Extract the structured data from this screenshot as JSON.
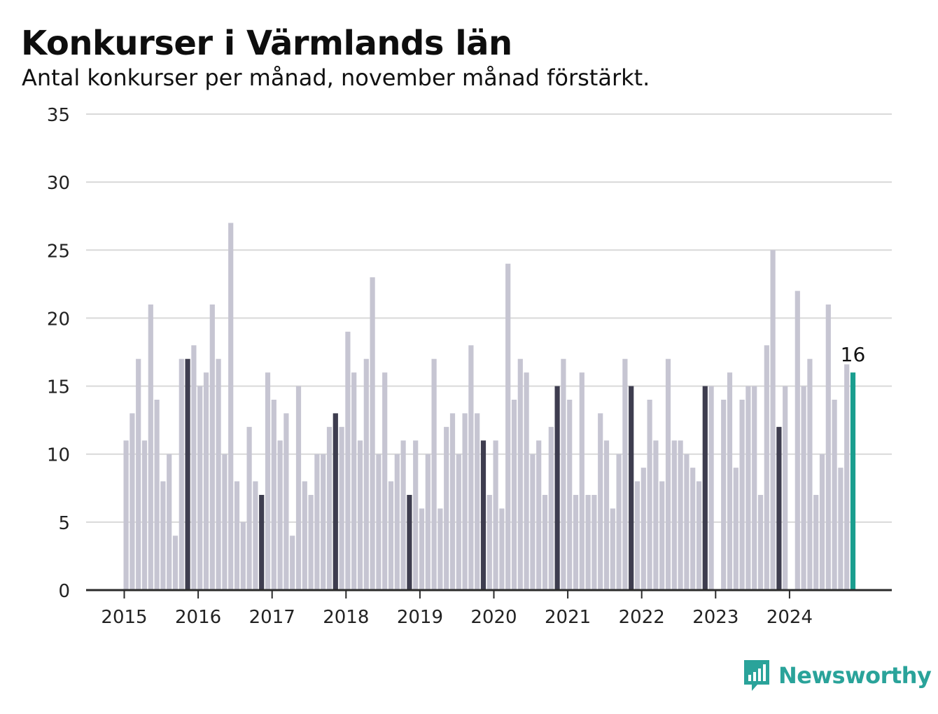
{
  "title": "Konkurser i Värmlands län",
  "subtitle": "Antal konkurser per månad, november månad förstärkt.",
  "brand": {
    "name": "Newsworthy",
    "icon": "newsworthy-logo-icon"
  },
  "colors": {
    "normal": "#c6c5d2",
    "november": "#3e3d4f",
    "latest": "#1a9e8f",
    "grid": "#d9d9d9",
    "axis": "#2a2a2a",
    "brand": "#2aa39a"
  },
  "chart_data": {
    "type": "bar",
    "title": "Konkurser i Värmlands län",
    "subtitle": "Antal konkurser per månad, november månad förstärkt.",
    "xlabel": "",
    "ylabel": "",
    "ylim": [
      0,
      35
    ],
    "yticks": [
      0,
      5,
      10,
      15,
      20,
      25,
      30,
      35
    ],
    "xticks": [
      "2015",
      "2016",
      "2017",
      "2018",
      "2019",
      "2020",
      "2021",
      "2022",
      "2023",
      "2024"
    ],
    "grid": true,
    "highlight": "november",
    "latest_label": "16",
    "start": "2015-01",
    "values": [
      11,
      13,
      17,
      11,
      21,
      14,
      8,
      10,
      4,
      17,
      17,
      18,
      15,
      16,
      21,
      17,
      10,
      27,
      8,
      5,
      12,
      8,
      7,
      16,
      14,
      11,
      13,
      4,
      15,
      8,
      7,
      10,
      10,
      12,
      13,
      12,
      19,
      16,
      11,
      17,
      23,
      10,
      16,
      8,
      10,
      11,
      7,
      11,
      6,
      10,
      17,
      6,
      12,
      13,
      10,
      13,
      18,
      13,
      11,
      7,
      11,
      6,
      24,
      14,
      17,
      16,
      10,
      11,
      7,
      12,
      15,
      17,
      14,
      7,
      16,
      7,
      7,
      13,
      11,
      6,
      10,
      17,
      15,
      8,
      9,
      14,
      11,
      8,
      17,
      11,
      11,
      10,
      9,
      8,
      15,
      15,
      0,
      14,
      16,
      9,
      14,
      15,
      15,
      7,
      18,
      25,
      12,
      15,
      0,
      22,
      15,
      17,
      7,
      10,
      21,
      14,
      9,
      16.6,
      16
    ]
  }
}
